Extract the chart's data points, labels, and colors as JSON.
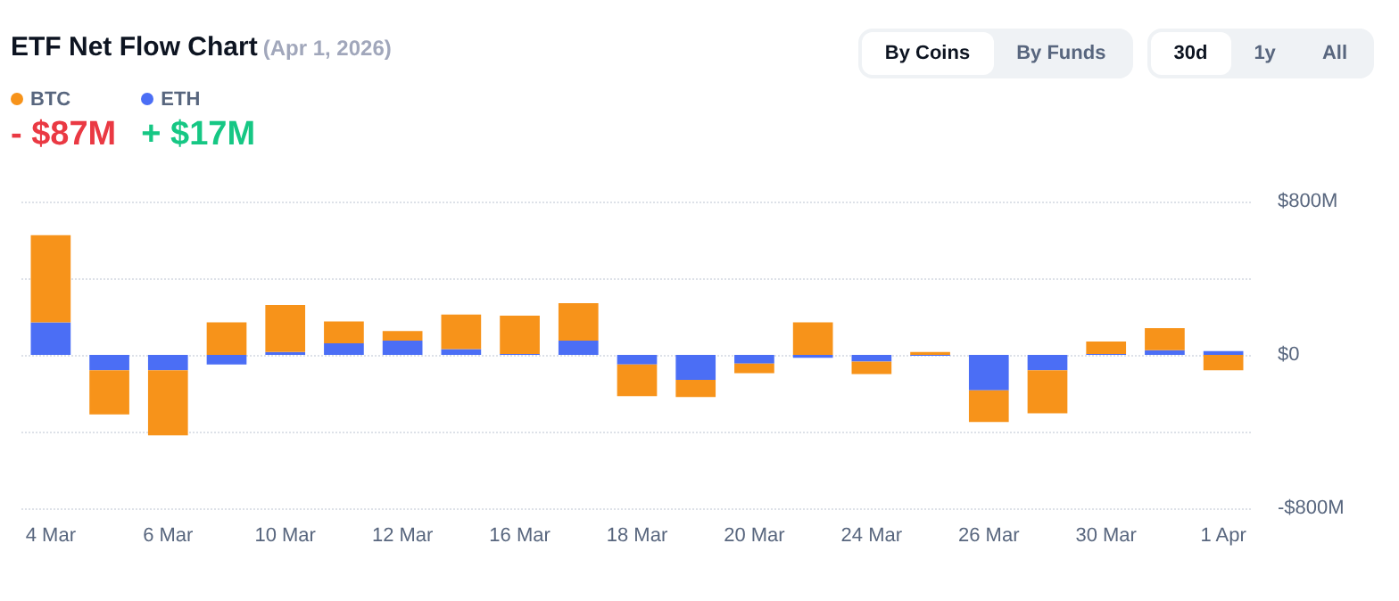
{
  "chart_data": {
    "type": "bar",
    "title": "ETF Net Flow Chart",
    "subtitle": "(Apr 1, 2026)",
    "annotations": [
      "- $87M",
      "+ $17M",
      "By Coins",
      "By Funds",
      "30d",
      "1y",
      "All"
    ],
    "categories": [
      "4 Mar",
      null,
      "6 Mar",
      null,
      "10 Mar",
      null,
      "12 Mar",
      null,
      "16 Mar",
      null,
      "18 Mar",
      null,
      "20 Mar",
      null,
      "24 Mar",
      null,
      "26 Mar",
      null,
      "30 Mar",
      null,
      "1 Apr"
    ],
    "stacked": true,
    "series": [
      {
        "name": "ETH",
        "color": "#4b6ef5",
        "values": [
          170,
          -80,
          -80,
          -50,
          15,
          60,
          75,
          30,
          5,
          75,
          -50,
          -130,
          -45,
          -15,
          -35,
          -5,
          -185,
          -80,
          5,
          25,
          20
        ]
      },
      {
        "name": "BTC",
        "color": "#f7931a",
        "values": [
          455,
          -230,
          -340,
          170,
          245,
          115,
          50,
          180,
          200,
          195,
          -165,
          -90,
          -50,
          170,
          -65,
          15,
          -165,
          -225,
          65,
          115,
          -80
        ]
      }
    ],
    "ylim": [
      -800,
      800
    ],
    "yticks": [
      {
        "value": -800,
        "label": "-$800M"
      },
      {
        "value": -400,
        "label": null
      },
      {
        "value": 0,
        "label": "$0"
      },
      {
        "value": 400,
        "label": null
      },
      {
        "value": 800,
        "label": "$800M"
      }
    ],
    "grid": "y",
    "legend": "top left"
  }
}
